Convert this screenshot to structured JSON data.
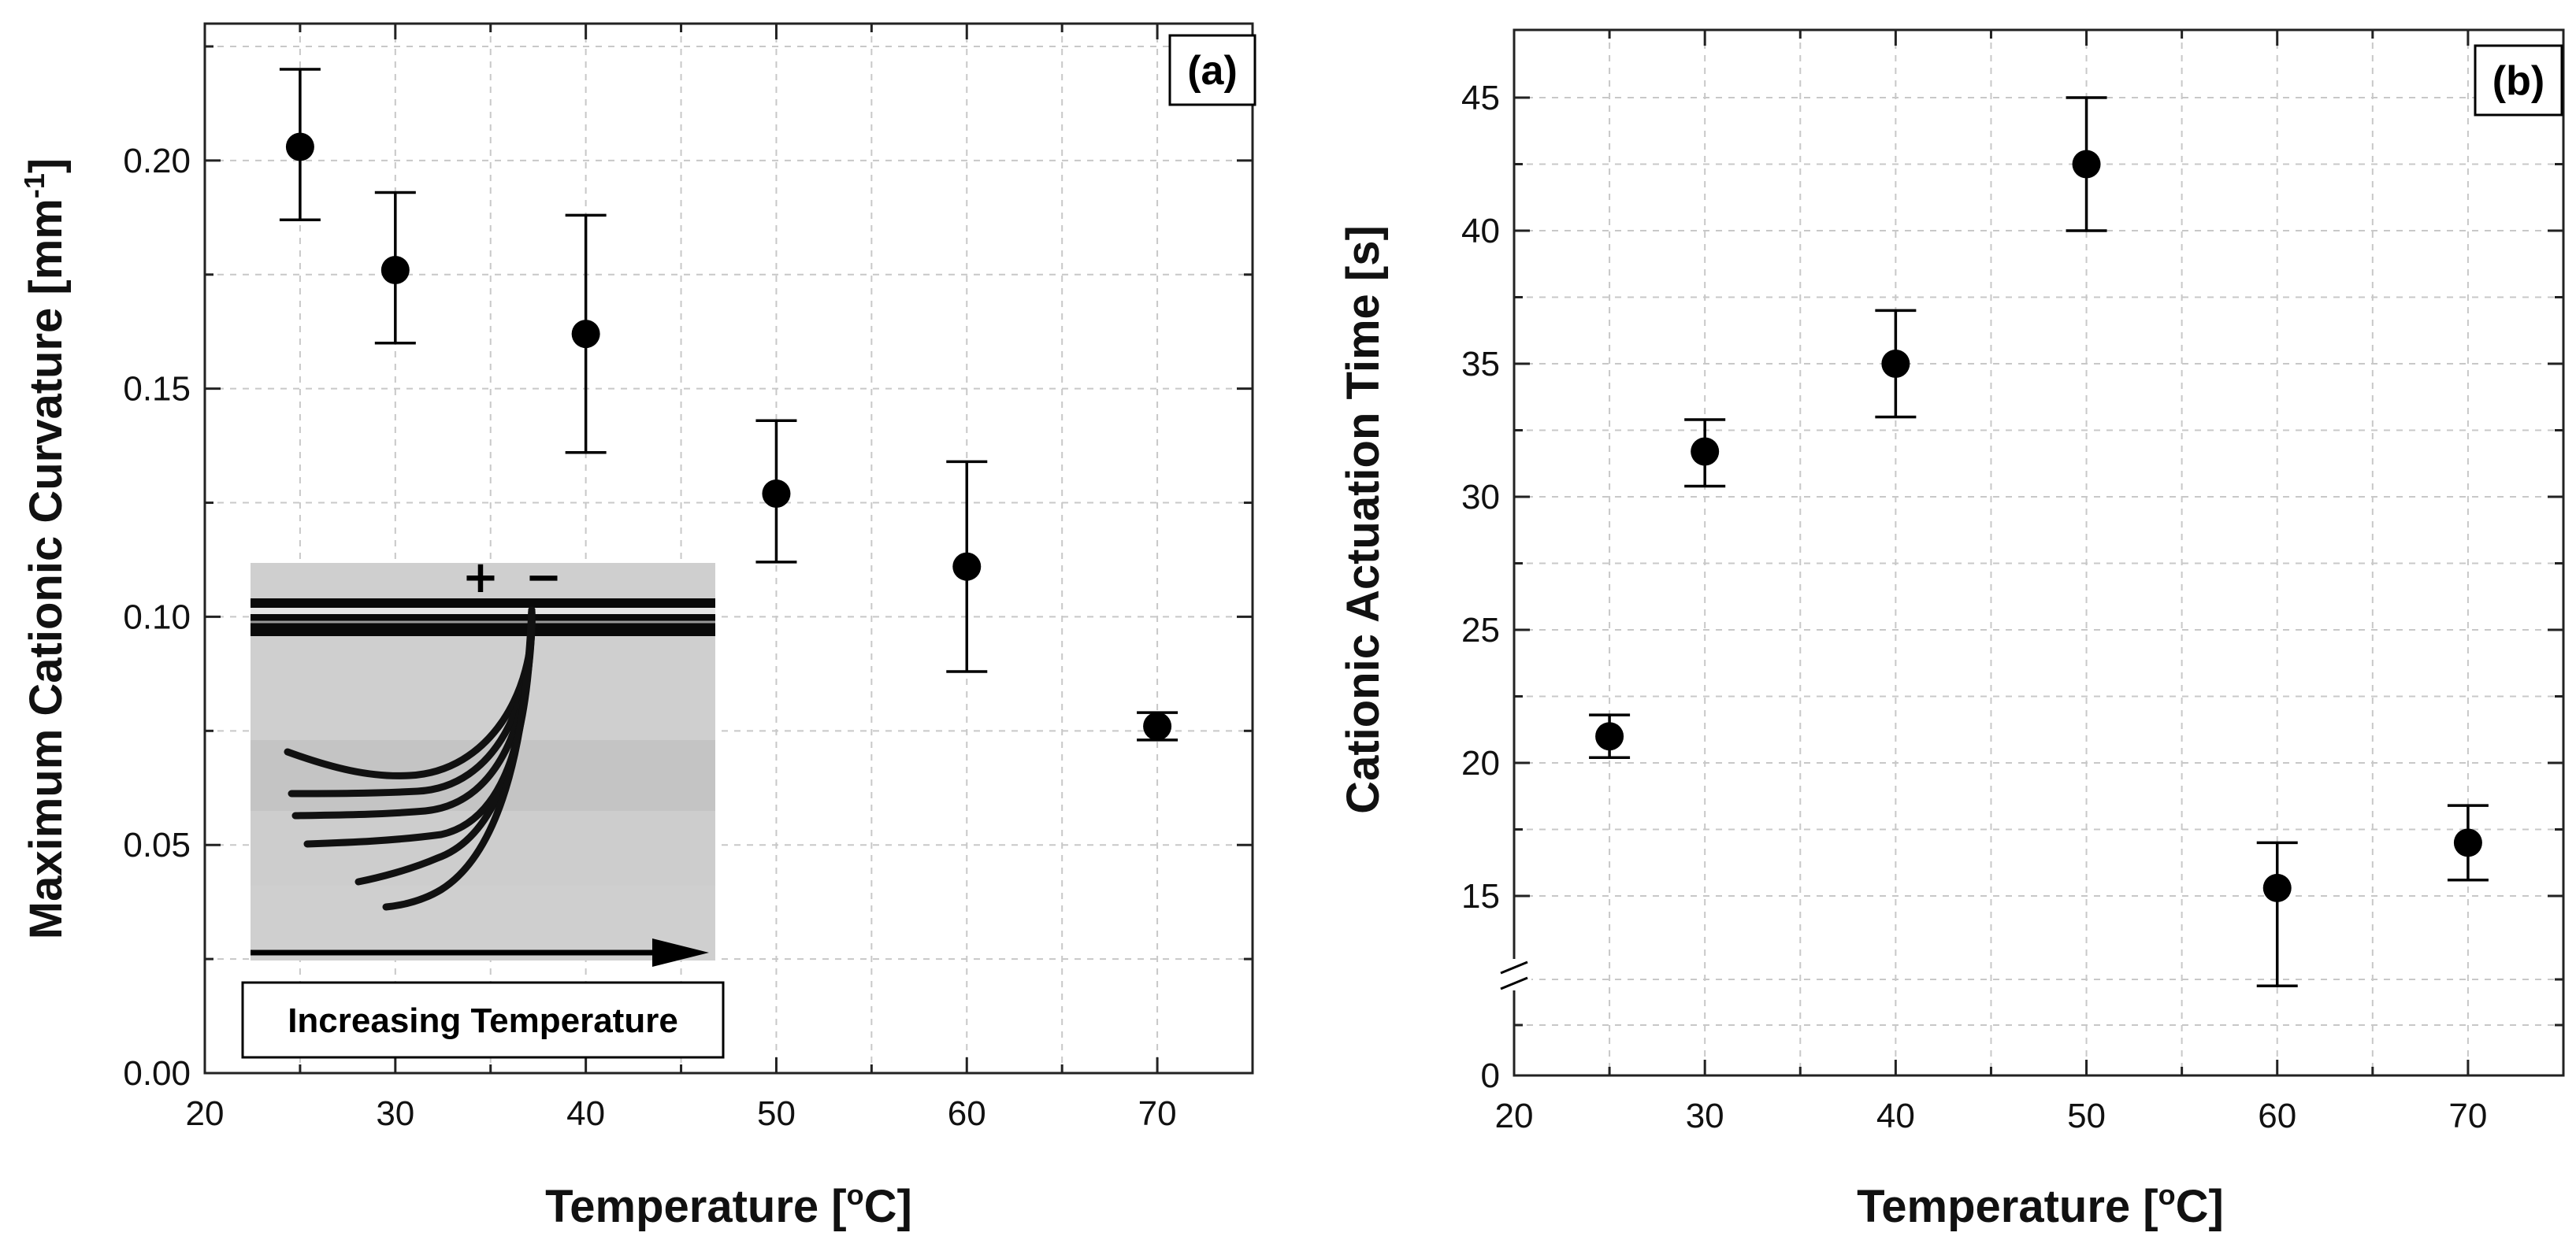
{
  "chart_data": [
    {
      "type": "scatter",
      "panel_label": "(a)",
      "xlabel_prefix": "Temperature [",
      "xlabel_degree": "o",
      "xlabel_suffix": "C]",
      "ylabel_prefix": "Maximum Cationic Curvature [mm",
      "ylabel_exponent": "-1",
      "ylabel_suffix": "]",
      "xlim": [
        20,
        75
      ],
      "ylim": [
        0,
        0.23
      ],
      "xticks": [
        20,
        30,
        40,
        50,
        60,
        70
      ],
      "xtick_labels": [
        "20",
        "30",
        "40",
        "50",
        "60",
        "70"
      ],
      "yticks": [
        0,
        0.05,
        0.1,
        0.15,
        0.2
      ],
      "ytick_labels": [
        "0.00",
        "0.05",
        "0.10",
        "0.15",
        "0.20"
      ],
      "grid": true,
      "x": [
        25,
        30,
        40,
        50,
        60,
        70
      ],
      "y": [
        0.203,
        0.176,
        0.162,
        0.127,
        0.111,
        0.076
      ],
      "err_low": [
        0.187,
        0.16,
        0.136,
        0.112,
        0.088,
        0.073
      ],
      "err_high": [
        0.22,
        0.193,
        0.188,
        0.143,
        0.134,
        0.079
      ],
      "inset": {
        "signs": [
          "+",
          "−"
        ],
        "caption": "Increasing Temperature"
      }
    },
    {
      "type": "scatter",
      "panel_label": "(b)",
      "xlabel_prefix": "Temperature [",
      "xlabel_degree": "o",
      "xlabel_suffix": "C]",
      "ylabel": "Cationic Actuation Time [s]",
      "xlim": [
        20,
        75
      ],
      "ylim": [
        0,
        47
      ],
      "y_axis_break": [
        0,
        12
      ],
      "xticks": [
        20,
        30,
        40,
        50,
        60,
        70
      ],
      "xtick_labels": [
        "20",
        "30",
        "40",
        "50",
        "60",
        "70"
      ],
      "yticks": [
        0,
        15,
        20,
        25,
        30,
        35,
        40,
        45
      ],
      "ytick_labels": [
        "0",
        "15",
        "20",
        "25",
        "30",
        "35",
        "40",
        "45"
      ],
      "grid": true,
      "x": [
        25,
        30,
        40,
        50,
        60,
        70
      ],
      "y": [
        21.0,
        31.7,
        35.0,
        42.5,
        15.3,
        17.0
      ],
      "err_low": [
        20.2,
        30.4,
        33.0,
        40.0,
        13.6,
        15.6
      ],
      "err_high": [
        21.8,
        32.9,
        37.0,
        45.0,
        17.0,
        18.4
      ]
    }
  ]
}
